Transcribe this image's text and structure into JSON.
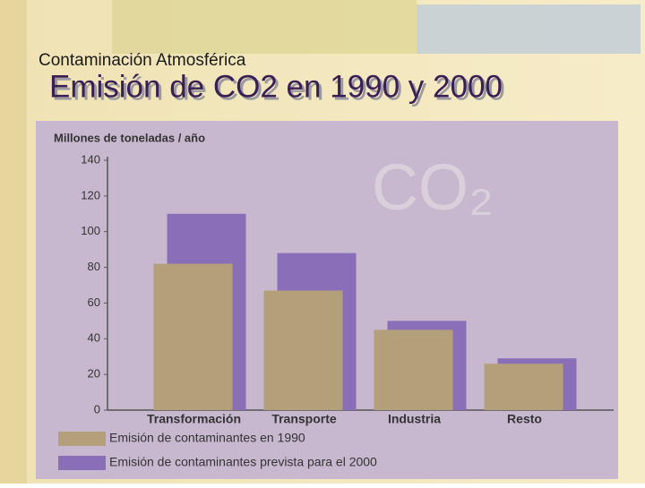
{
  "slide": {
    "section": "Contaminación Atmosférica"
  },
  "chart_data": {
    "type": "bar",
    "title": "Emisión de CO2 en 1990 y 2000",
    "y_label": "Millones de toneladas / año",
    "watermark": "CO₂",
    "categories": [
      "Transformación",
      "Transporte",
      "Industria",
      "Resto"
    ],
    "series": [
      {
        "name": "Emisión de contaminantes en 1990",
        "color": "#b3a07a",
        "values": [
          82,
          67,
          45,
          26
        ]
      },
      {
        "name": "Emisión de contaminantes prevista para el 2000",
        "color": "#8a6fb8",
        "values": [
          110,
          88,
          50,
          29
        ]
      }
    ],
    "ylim": [
      0,
      140
    ],
    "yticks": [
      0,
      20,
      40,
      60,
      80,
      100,
      120,
      140
    ],
    "grid": false
  }
}
